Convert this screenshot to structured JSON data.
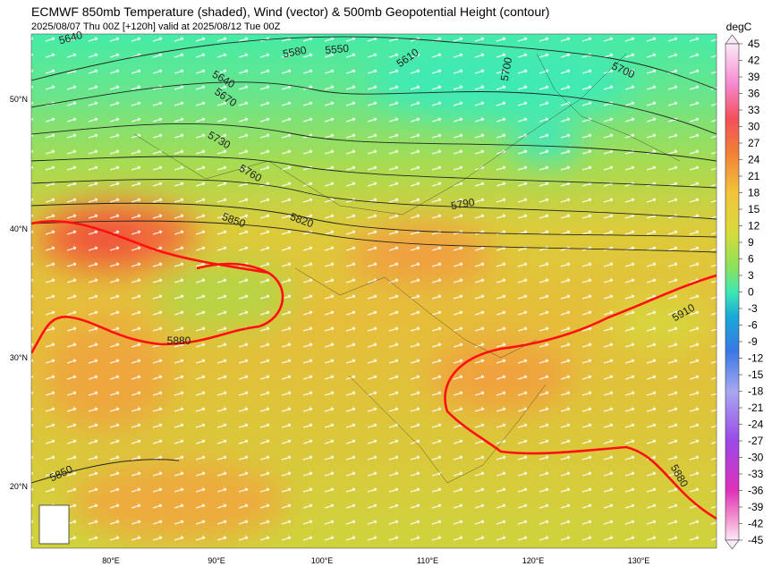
{
  "header": {
    "title": "ECMWF 850mb Temperature (shaded), Wind (vector) & 500mb Geopotential Height (contour)",
    "subtitle": "2025/08/07 Thu 00Z [+120h] valid at 2025/08/12 Tue 00Z"
  },
  "colorbar": {
    "unit": "degC",
    "ticks": [
      45,
      42,
      39,
      36,
      33,
      30,
      27,
      24,
      21,
      18,
      15,
      12,
      9,
      6,
      3,
      0,
      -3,
      -6,
      -9,
      -12,
      -15,
      -18,
      -21,
      -24,
      -27,
      -30,
      -33,
      -36,
      -39,
      -42,
      -45
    ]
  },
  "axes": {
    "lat_labels": [
      "50°N",
      "40°N",
      "30°N",
      "20°N"
    ],
    "lon_labels": [
      "80°E",
      "90°E",
      "100°E",
      "110°E",
      "120°E",
      "130°E"
    ]
  },
  "contours": {
    "labels": [
      5640,
      5580,
      5550,
      5610,
      5700,
      5700,
      5640,
      5670,
      5730,
      5760,
      5850,
      5820,
      5790,
      5880,
      5910,
      5850,
      5880
    ]
  }
}
